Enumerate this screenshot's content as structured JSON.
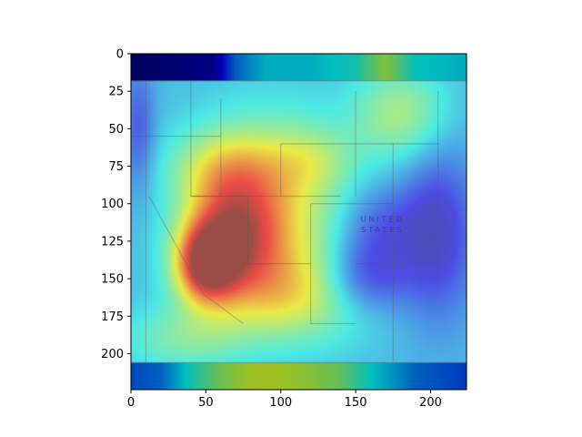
{
  "chart_data": {
    "type": "heatmap",
    "subtype": "saliency overlay on map image (imshow)",
    "title": "",
    "xlabel": "",
    "ylabel": "",
    "xlim": [
      0,
      224
    ],
    "ylim": [
      224,
      0
    ],
    "x_ticks": [
      0,
      50,
      100,
      150,
      200
    ],
    "y_ticks": [
      0,
      25,
      50,
      75,
      100,
      125,
      150,
      175,
      200
    ],
    "colormap": "jet",
    "background_image": "map of the western United States",
    "background_colors": {
      "land": "#c9c9b8",
      "border_line": "#5a5a5a"
    },
    "blobs": [
      {
        "x": 50,
        "y": 140,
        "sx": 14,
        "sy": 18,
        "strength": 0.55
      },
      {
        "x": 68,
        "y": 120,
        "sx": 22,
        "sy": 28,
        "strength": 0.45
      },
      {
        "x": 95,
        "y": 100,
        "sx": 35,
        "sy": 40,
        "strength": 0.3
      },
      {
        "x": 110,
        "y": 160,
        "sx": 38,
        "sy": 22,
        "strength": 0.28
      },
      {
        "x": 180,
        "y": 40,
        "sx": 22,
        "sy": 22,
        "strength": 0.22
      },
      {
        "x": 60,
        "y": 75,
        "sx": 25,
        "sy": 18,
        "strength": 0.18
      },
      {
        "x": 35,
        "y": 190,
        "sx": 30,
        "sy": 15,
        "strength": 0.15
      },
      {
        "x": 120,
        "y": 70,
        "sx": 20,
        "sy": 15,
        "strength": 0.12
      }
    ],
    "cold_spots": [
      {
        "x": 155,
        "y": 150,
        "sx": 22,
        "sy": 18,
        "strength": 0.25
      },
      {
        "x": 205,
        "y": 120,
        "sx": 18,
        "sy": 40,
        "strength": 0.22
      },
      {
        "x": 165,
        "y": 115,
        "sx": 20,
        "sy": 20,
        "strength": 0.15
      },
      {
        "x": 5,
        "y": 50,
        "sx": 8,
        "sy": 30,
        "strength": 0.15
      }
    ],
    "base_level": 0.3,
    "top_band": {
      "y_range": [
        0,
        18
      ],
      "profile_x": [
        0,
        30,
        55,
        70,
        90,
        120,
        150,
        170,
        190,
        224
      ],
      "profile_v": [
        0.0,
        0.02,
        0.05,
        0.25,
        0.35,
        0.35,
        0.4,
        0.55,
        0.38,
        0.35
      ]
    },
    "bottom_band": {
      "y_range": [
        206,
        224
      ],
      "profile_x": [
        0,
        20,
        40,
        60,
        80,
        100,
        120,
        140,
        160,
        190,
        224
      ],
      "profile_v": [
        0.22,
        0.25,
        0.4,
        0.52,
        0.58,
        0.58,
        0.55,
        0.5,
        0.38,
        0.25,
        0.2
      ]
    },
    "map_labels": [
      {
        "text": "UNITED",
        "x": 168,
        "y": 112
      },
      {
        "text": "STATES",
        "x": 168,
        "y": 119
      }
    ]
  }
}
